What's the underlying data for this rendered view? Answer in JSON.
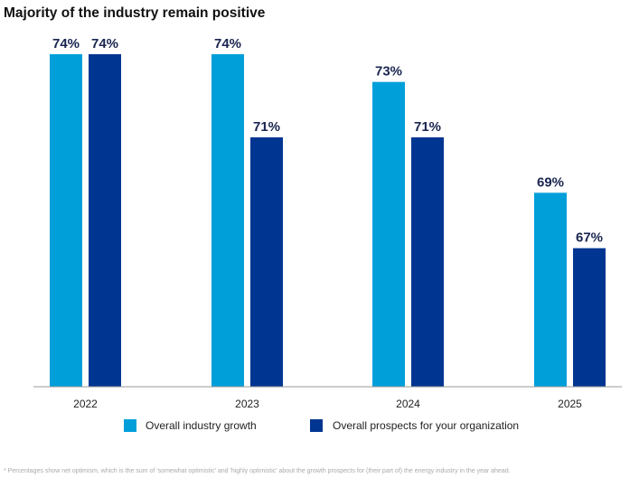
{
  "chart_data": {
    "type": "bar",
    "title": "Majority of the industry remain positive",
    "categories": [
      "2022",
      "2023",
      "2024",
      "2025"
    ],
    "series": [
      {
        "name": "Overall industry growth",
        "values": [
          74,
          74,
          73,
          69
        ],
        "labels": [
          "74%",
          "74%",
          "73%",
          "69%"
        ],
        "color": "#009fda"
      },
      {
        "name": "Overall prospects for your organization",
        "values": [
          74,
          71,
          71,
          67
        ],
        "labels": [
          "74%",
          "71%",
          "71%",
          "67%"
        ],
        "color": "#003591"
      }
    ],
    "xlabel": "",
    "ylabel": "",
    "ylim": [
      62,
      75
    ],
    "grid": false,
    "legend_position": "bottom",
    "footnote": "* Percentages show net optimism, which is the sum of 'somewhat optimistic' and 'highly optimistic' about the growth prospects for (their part of) the energy industry in the year ahead."
  }
}
